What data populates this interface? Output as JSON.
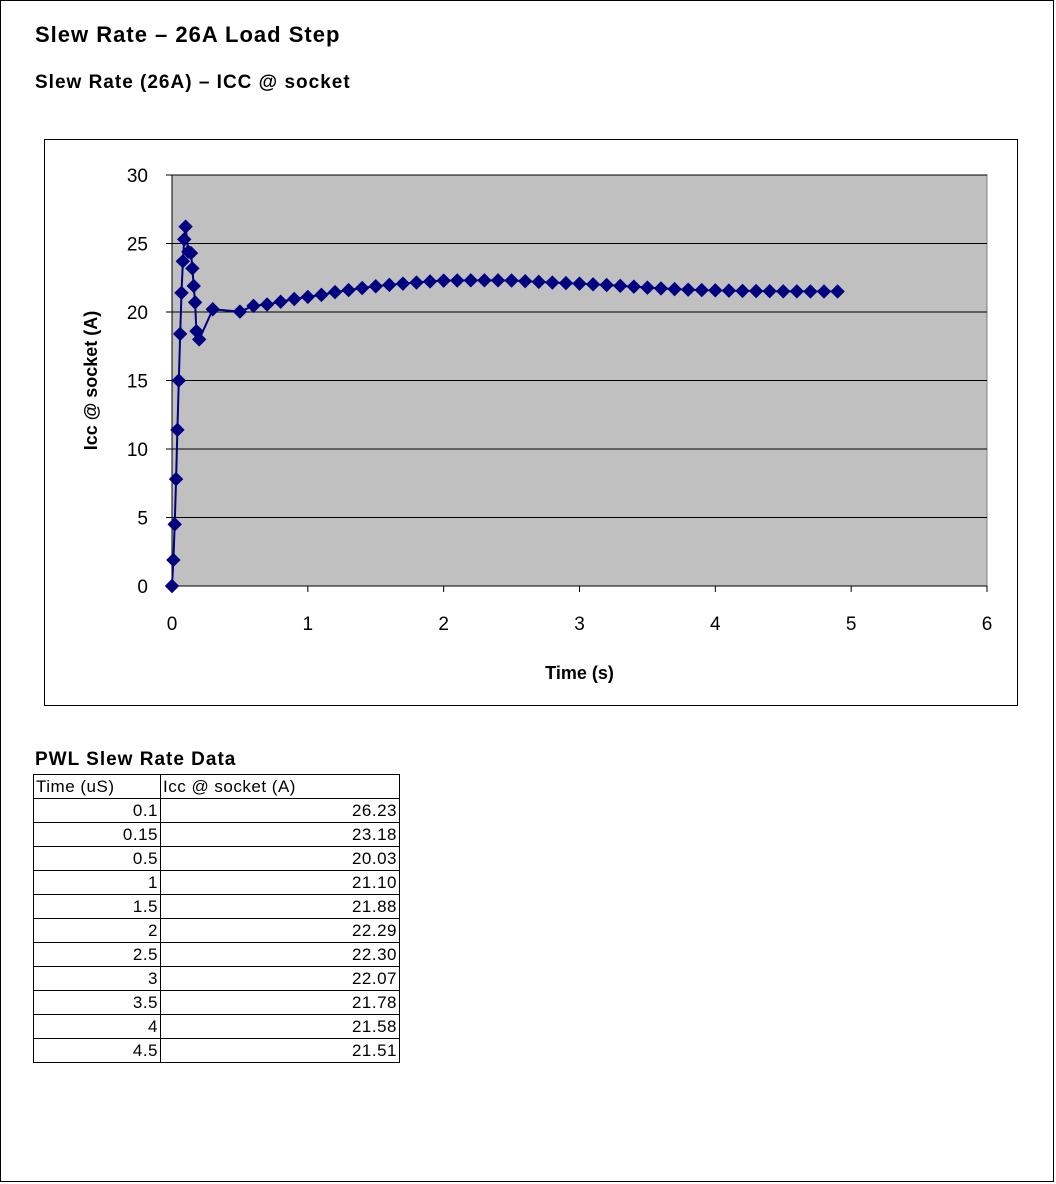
{
  "page": {
    "title": "Slew Rate – 26A Load Step",
    "subtitle": "Slew Rate (26A) – ICC @ socket"
  },
  "chart_data": {
    "type": "scatter",
    "line": true,
    "marker": "diamond",
    "xlabel": "Time (s)",
    "ylabel": "Icc @ socket (A)",
    "xlim": [
      0,
      6
    ],
    "ylim": [
      0,
      30
    ],
    "x_ticks": [
      "0",
      "1",
      "2",
      "3",
      "4",
      "5",
      "6"
    ],
    "y_ticks": [
      "0",
      "5",
      "10",
      "15",
      "20",
      "25",
      "30"
    ],
    "grid": "horizontal",
    "legend": "none",
    "colors": {
      "series": "#000080",
      "plot_bg": "#c0c0c0"
    },
    "series": [
      {
        "x": [
          0,
          0.01,
          0.02,
          0.03,
          0.04,
          0.05,
          0.06,
          0.07,
          0.08,
          0.09,
          0.1,
          0.12,
          0.14,
          0.15,
          0.16,
          0.17,
          0.18,
          0.2,
          0.3,
          0.5,
          0.6,
          0.7,
          0.8,
          0.9,
          1,
          1.1,
          1.2,
          1.3,
          1.4,
          1.5,
          1.6,
          1.7,
          1.8,
          1.9,
          2,
          2.1,
          2.2,
          2.3,
          2.4,
          2.5,
          2.6,
          2.7,
          2.8,
          2.9,
          3,
          3.1,
          3.2,
          3.3,
          3.4,
          3.5,
          3.6,
          3.7,
          3.8,
          3.9,
          4,
          4.1,
          4.2,
          4.3,
          4.4,
          4.5,
          4.6,
          4.7,
          4.8,
          4.9
        ],
        "y": [
          0,
          1.9,
          4.5,
          7.8,
          11.4,
          15.0,
          18.4,
          21.4,
          23.7,
          25.3,
          26.23,
          24.4,
          24.3,
          23.18,
          21.9,
          20.7,
          18.6,
          18.0,
          20.2,
          20.03,
          20.45,
          20.55,
          20.75,
          20.95,
          21.1,
          21.25,
          21.45,
          21.6,
          21.75,
          21.88,
          21.98,
          22.07,
          22.15,
          22.23,
          22.29,
          22.3,
          22.31,
          22.31,
          22.31,
          22.3,
          22.25,
          22.2,
          22.15,
          22.11,
          22.07,
          22.02,
          21.97,
          21.91,
          21.85,
          21.78,
          21.72,
          21.67,
          21.63,
          21.6,
          21.58,
          21.56,
          21.54,
          21.53,
          21.52,
          21.51,
          21.51,
          21.5,
          21.5,
          21.5
        ]
      }
    ]
  },
  "table": {
    "title": "PWL Slew Rate Data",
    "headers": [
      "Time (uS)",
      "Icc @ socket (A)"
    ],
    "rows": [
      [
        "0.1",
        "26.23"
      ],
      [
        "0.15",
        "23.18"
      ],
      [
        "0.5",
        "20.03"
      ],
      [
        "1",
        "21.10"
      ],
      [
        "1.5",
        "21.88"
      ],
      [
        "2",
        "22.29"
      ],
      [
        "2.5",
        "22.30"
      ],
      [
        "3",
        "22.07"
      ],
      [
        "3.5",
        "21.78"
      ],
      [
        "4",
        "21.58"
      ],
      [
        "4.5",
        "21.51"
      ]
    ]
  }
}
